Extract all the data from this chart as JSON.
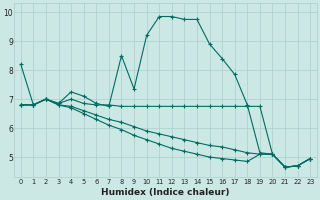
{
  "xlabel": "Humidex (Indice chaleur)",
  "background_color": "#cce8e4",
  "grid_color": "#aacfcb",
  "line_color": "#006b63",
  "xlim": [
    -0.5,
    23.5
  ],
  "ylim": [
    4.3,
    10.3
  ],
  "xticks": [
    0,
    1,
    2,
    3,
    4,
    5,
    6,
    7,
    8,
    9,
    10,
    11,
    12,
    13,
    14,
    15,
    16,
    17,
    18,
    19,
    20,
    21,
    22,
    23
  ],
  "yticks": [
    5,
    6,
    7,
    8,
    9,
    10
  ],
  "line1_x": [
    0,
    1,
    2,
    3,
    4,
    5,
    6,
    7,
    8,
    9,
    10,
    11,
    12,
    13,
    14,
    15,
    16,
    17,
    18,
    19,
    20,
    21,
    22,
    23
  ],
  "line1_y": [
    8.2,
    6.8,
    7.0,
    6.85,
    7.25,
    7.1,
    6.85,
    6.75,
    8.5,
    7.35,
    9.2,
    9.85,
    9.85,
    9.75,
    9.75,
    8.9,
    8.4,
    7.85,
    6.8,
    5.15,
    5.1,
    4.65,
    4.7,
    4.95
  ],
  "line2_x": [
    0,
    1,
    2,
    3,
    4,
    5,
    6,
    7,
    8,
    9,
    10,
    11,
    12,
    13,
    14,
    15,
    16,
    17,
    18,
    19,
    20,
    21,
    22,
    23
  ],
  "line2_y": [
    6.8,
    6.8,
    7.0,
    6.85,
    7.0,
    6.85,
    6.8,
    6.8,
    6.75,
    6.75,
    6.75,
    6.75,
    6.75,
    6.75,
    6.75,
    6.75,
    6.75,
    6.75,
    6.75,
    6.75,
    5.1,
    4.65,
    4.7,
    4.95
  ],
  "line3_x": [
    0,
    1,
    2,
    3,
    4,
    5,
    6,
    7,
    8,
    9,
    10,
    11,
    12,
    13,
    14,
    15,
    16,
    17,
    18,
    19,
    20,
    21,
    22,
    23
  ],
  "line3_y": [
    6.8,
    6.8,
    7.0,
    6.8,
    6.75,
    6.6,
    6.45,
    6.3,
    6.2,
    6.05,
    5.9,
    5.8,
    5.7,
    5.6,
    5.5,
    5.4,
    5.35,
    5.25,
    5.15,
    5.1,
    5.1,
    4.65,
    4.7,
    4.95
  ],
  "line4_x": [
    0,
    1,
    2,
    3,
    4,
    5,
    6,
    7,
    8,
    9,
    10,
    11,
    12,
    13,
    14,
    15,
    16,
    17,
    18,
    19,
    20,
    21,
    22,
    23
  ],
  "line4_y": [
    6.8,
    6.8,
    7.0,
    6.8,
    6.7,
    6.5,
    6.3,
    6.1,
    5.95,
    5.75,
    5.6,
    5.45,
    5.3,
    5.2,
    5.1,
    5.0,
    4.95,
    4.9,
    4.85,
    5.1,
    5.1,
    4.65,
    4.7,
    4.95
  ]
}
